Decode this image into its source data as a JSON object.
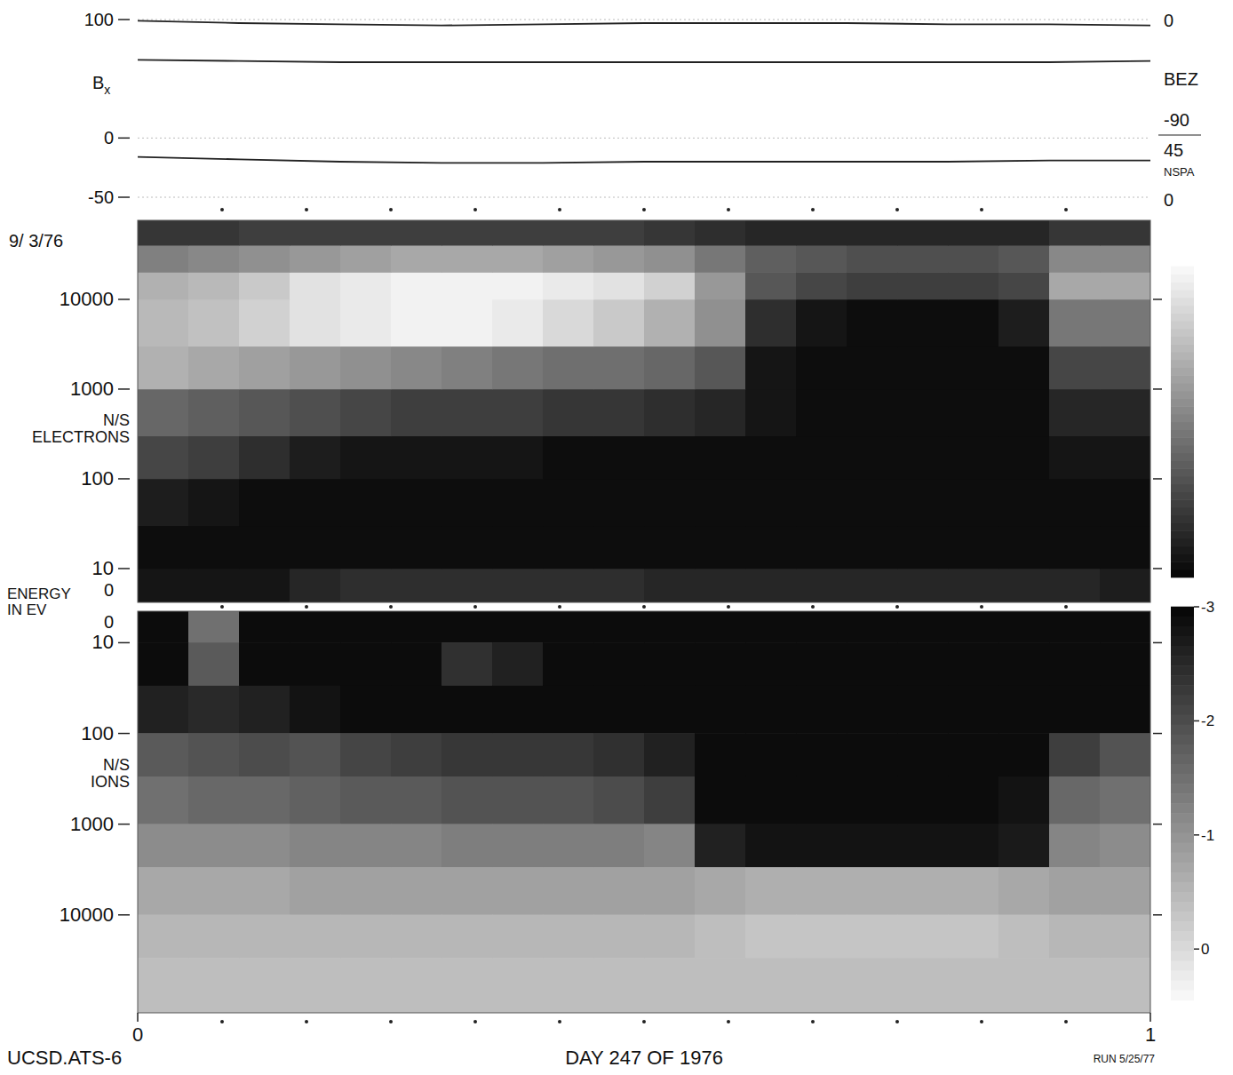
{
  "chart_data": [
    {
      "type": "line",
      "y_label": "Bx",
      "x": [
        0,
        0.1,
        0.2,
        0.3,
        0.4,
        0.5,
        0.6,
        0.7,
        0.8,
        0.9,
        1
      ],
      "xlim": [
        0,
        1
      ],
      "ylim": [
        -50,
        100
      ],
      "yticks": [
        -50,
        0,
        100
      ],
      "grid": true,
      "tick_labels": "y",
      "right_labels": [
        "0",
        "BEZ",
        "-90",
        "45",
        "NSPA",
        "0"
      ],
      "series": [
        {
          "color": "#222222",
          "values": [
            99,
            97,
            96,
            95,
            96,
            97,
            97,
            97,
            96,
            96,
            95
          ]
        },
        {
          "color": "#222222",
          "values": [
            66,
            65,
            64,
            64,
            64,
            64,
            64,
            64,
            64,
            64,
            65
          ]
        },
        {
          "color": "#222222",
          "values": [
            -16,
            -18,
            -20,
            -21,
            -21,
            -20,
            -20,
            -20,
            -20,
            -19,
            -19
          ]
        }
      ]
    },
    {
      "type": "heatmap",
      "date": "9/ 3/76",
      "y_label": "N/S ELECTRONS",
      "energy_label": "ENERGY IN EV",
      "log": "y",
      "xlim": [
        0,
        1
      ],
      "ylim": [
        4.2,
        76000
      ],
      "yticks": [
        10,
        100,
        1000,
        10000
      ],
      "zero_label": "0",
      "tick_labels": "y",
      "x_edges": [
        0,
        0.05,
        0.1,
        0.15,
        0.2,
        0.25,
        0.3,
        0.35,
        0.4,
        0.45,
        0.5,
        0.55,
        0.6,
        0.65,
        0.7,
        0.75,
        0.8,
        0.85,
        0.9,
        0.95,
        1
      ],
      "y_edges": [
        4.2,
        10,
        30,
        100,
        300,
        1000,
        3000,
        10000,
        20000,
        40000,
        76000
      ],
      "cells": [
        [
          -2.8,
          -2.8,
          -2.8,
          -2.6,
          -2.5,
          -2.5,
          -2.5,
          -2.5,
          -2.5,
          -2.5,
          -2.6,
          -2.6,
          -2.6,
          -2.6,
          -2.6,
          -2.6,
          -2.6,
          -2.6,
          -2.6,
          -2.7
        ],
        [
          -2.9,
          -2.9,
          -2.9,
          -2.9,
          -2.9,
          -2.9,
          -2.9,
          -2.9,
          -2.9,
          -2.9,
          -2.9,
          -2.9,
          -2.9,
          -2.9,
          -2.9,
          -2.9,
          -2.9,
          -2.9,
          -2.9,
          -2.9
        ],
        [
          -2.7,
          -2.8,
          -2.9,
          -2.9,
          -2.9,
          -2.9,
          -2.9,
          -2.9,
          -2.9,
          -2.9,
          -2.9,
          -2.9,
          -2.9,
          -2.9,
          -2.9,
          -2.9,
          -2.9,
          -2.9,
          -2.9,
          -2.9
        ],
        [
          -2.2,
          -2.3,
          -2.5,
          -2.7,
          -2.8,
          -2.8,
          -2.8,
          -2.8,
          -2.9,
          -2.9,
          -2.9,
          -2.9,
          -2.9,
          -2.9,
          -2.9,
          -2.9,
          -2.9,
          -2.9,
          -2.8,
          -2.8
        ],
        [
          -1.8,
          -1.9,
          -2.0,
          -2.1,
          -2.2,
          -2.3,
          -2.3,
          -2.3,
          -2.4,
          -2.4,
          -2.5,
          -2.6,
          -2.8,
          -2.9,
          -2.9,
          -2.9,
          -2.9,
          -2.9,
          -2.6,
          -2.6
        ],
        [
          -0.9,
          -1.0,
          -1.1,
          -1.2,
          -1.3,
          -1.4,
          -1.5,
          -1.6,
          -1.7,
          -1.7,
          -1.8,
          -2.0,
          -2.8,
          -2.9,
          -2.9,
          -2.9,
          -2.9,
          -2.9,
          -2.2,
          -2.2
        ],
        [
          -0.8,
          -0.7,
          -0.5,
          -0.3,
          -0.2,
          -0.1,
          -0.1,
          -0.2,
          -0.4,
          -0.6,
          -0.9,
          -1.3,
          -2.5,
          -2.8,
          -2.9,
          -2.9,
          -2.9,
          -2.7,
          -1.6,
          -1.6
        ],
        [
          -0.9,
          -0.8,
          -0.6,
          -0.3,
          -0.2,
          -0.1,
          -0.1,
          -0.1,
          -0.2,
          -0.3,
          -0.5,
          -1.2,
          -2.0,
          -2.2,
          -2.3,
          -2.3,
          -2.3,
          -2.2,
          -1.0,
          -1.0
        ],
        [
          -1.5,
          -1.4,
          -1.3,
          -1.2,
          -1.1,
          -1.0,
          -1.0,
          -1.0,
          -1.1,
          -1.2,
          -1.3,
          -1.6,
          -1.9,
          -2.0,
          -2.1,
          -2.1,
          -2.1,
          -2.0,
          -1.4,
          -1.4
        ],
        [
          -2.4,
          -2.4,
          -2.3,
          -2.3,
          -2.3,
          -2.3,
          -2.3,
          -2.3,
          -2.3,
          -2.3,
          -2.4,
          -2.5,
          -2.6,
          -2.6,
          -2.6,
          -2.6,
          -2.6,
          -2.6,
          -2.4,
          -2.4
        ]
      ],
      "colorbar": {
        "range": [
          -3,
          0
        ]
      }
    },
    {
      "type": "heatmap",
      "y_label": "N/S IONS",
      "log": "y",
      "xlim": [
        0,
        1
      ],
      "xticks": [
        0,
        1
      ],
      "ylim": [
        120000,
        4.5
      ],
      "yticks": [
        10,
        100,
        1000,
        10000
      ],
      "zero_label": "0",
      "tick_labels": true,
      "x_label": "DAY 247 OF 1976",
      "source": "UCSD.ATS-6",
      "run": "RUN 5/25/77",
      "x_edges": [
        0,
        0.05,
        0.1,
        0.15,
        0.2,
        0.25,
        0.3,
        0.35,
        0.4,
        0.45,
        0.5,
        0.55,
        0.6,
        0.65,
        0.7,
        0.75,
        0.8,
        0.85,
        0.9,
        0.95,
        1
      ],
      "y_edges": [
        4.5,
        10,
        30,
        100,
        300,
        1000,
        3000,
        10000,
        30000,
        120000
      ],
      "cells": [
        [
          -2.9,
          -1.5,
          -2.9,
          -2.9,
          -2.9,
          -2.9,
          -2.9,
          -2.9,
          -2.9,
          -2.9,
          -2.9,
          -2.9,
          -2.9,
          -2.9,
          -2.9,
          -2.9,
          -2.9,
          -2.9,
          -2.9,
          -2.9
        ],
        [
          -2.9,
          -1.8,
          -2.9,
          -2.9,
          -2.9,
          -2.9,
          -2.4,
          -2.6,
          -2.9,
          -2.9,
          -2.9,
          -2.9,
          -2.9,
          -2.9,
          -2.9,
          -2.9,
          -2.9,
          -2.9,
          -2.9,
          -2.9
        ],
        [
          -2.6,
          -2.5,
          -2.6,
          -2.8,
          -2.9,
          -2.9,
          -2.9,
          -2.9,
          -2.9,
          -2.9,
          -2.9,
          -2.9,
          -2.9,
          -2.9,
          -2.9,
          -2.9,
          -2.9,
          -2.9,
          -2.9,
          -2.9
        ],
        [
          -1.8,
          -1.9,
          -2.0,
          -1.9,
          -2.1,
          -2.2,
          -2.3,
          -2.3,
          -2.3,
          -2.4,
          -2.6,
          -2.9,
          -2.9,
          -2.9,
          -2.9,
          -2.9,
          -2.9,
          -2.9,
          -2.2,
          -1.9
        ],
        [
          -1.5,
          -1.6,
          -1.6,
          -1.7,
          -1.8,
          -1.8,
          -1.9,
          -1.9,
          -1.9,
          -2.0,
          -2.2,
          -2.9,
          -2.9,
          -2.9,
          -2.9,
          -2.9,
          -2.9,
          -2.8,
          -1.6,
          -1.5
        ],
        [
          -1.1,
          -1.1,
          -1.1,
          -1.2,
          -1.2,
          -1.2,
          -1.3,
          -1.3,
          -1.3,
          -1.3,
          -1.2,
          -2.6,
          -2.8,
          -2.8,
          -2.8,
          -2.8,
          -2.8,
          -2.7,
          -1.2,
          -1.1
        ],
        [
          -0.7,
          -0.7,
          -0.7,
          -0.8,
          -0.8,
          -0.8,
          -0.8,
          -0.8,
          -0.8,
          -0.8,
          -0.8,
          -0.7,
          -0.6,
          -0.6,
          -0.6,
          -0.6,
          -0.6,
          -0.7,
          -0.8,
          -0.8
        ],
        [
          -0.5,
          -0.5,
          -0.5,
          -0.5,
          -0.5,
          -0.5,
          -0.5,
          -0.5,
          -0.5,
          -0.5,
          -0.5,
          -0.4,
          -0.3,
          -0.3,
          -0.3,
          -0.3,
          -0.3,
          -0.4,
          -0.5,
          -0.5
        ],
        [
          -0.4,
          -0.4,
          -0.4,
          -0.4,
          -0.4,
          -0.4,
          -0.4,
          -0.4,
          -0.4,
          -0.4,
          -0.4,
          -0.4,
          -0.4,
          -0.4,
          -0.4,
          -0.4,
          -0.4,
          -0.4,
          -0.4,
          -0.4
        ]
      ],
      "colorbar": {
        "range": [
          -3,
          0.45
        ],
        "ticks": [
          -3,
          -2,
          -1,
          0
        ]
      }
    }
  ]
}
